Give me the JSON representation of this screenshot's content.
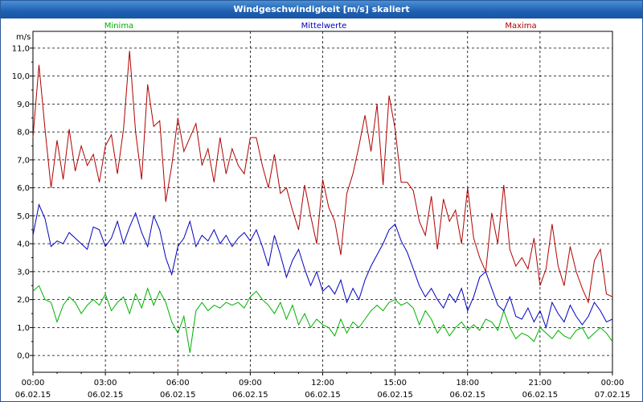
{
  "window": {
    "title": "Windgeschwindigkeit [m/s] skaliert"
  },
  "chart_data": {
    "type": "line",
    "title": "Windgeschwindigkeit [m/s] skaliert",
    "ylabel": "m/s",
    "ylim": [
      -0.6,
      11.6
    ],
    "yticks": [
      "0,0",
      "1,0",
      "2,0",
      "3,0",
      "4,0",
      "5,0",
      "6,0",
      "7,0",
      "8,0",
      "9,0",
      "10,0",
      "11,0"
    ],
    "ytick_values": [
      0,
      1,
      2,
      3,
      4,
      5,
      6,
      7,
      8,
      9,
      10,
      11
    ],
    "xlim": [
      0,
      24
    ],
    "xticks": [
      {
        "time": "00:00",
        "date": "06.02.15"
      },
      {
        "time": "03:00",
        "date": "06.02.15"
      },
      {
        "time": "06:00",
        "date": "06.02.15"
      },
      {
        "time": "09:00",
        "date": "06.02.15"
      },
      {
        "time": "12:00",
        "date": "06.02.15"
      },
      {
        "time": "15:00",
        "date": "06.02.15"
      },
      {
        "time": "18:00",
        "date": "06.02.15"
      },
      {
        "time": "21:00",
        "date": "06.02.15"
      },
      {
        "time": "00:00",
        "date": "07.02.15"
      }
    ],
    "legend_placement": "top",
    "grid": true,
    "x_hours": [
      0,
      0.25,
      0.5,
      0.75,
      1,
      1.25,
      1.5,
      1.75,
      2,
      2.25,
      2.5,
      2.75,
      3,
      3.25,
      3.5,
      3.75,
      4,
      4.25,
      4.5,
      4.75,
      5,
      5.25,
      5.5,
      5.75,
      6,
      6.25,
      6.5,
      6.75,
      7,
      7.25,
      7.5,
      7.75,
      8,
      8.25,
      8.5,
      8.75,
      9,
      9.25,
      9.5,
      9.75,
      10,
      10.25,
      10.5,
      10.75,
      11,
      11.25,
      11.5,
      11.75,
      12,
      12.25,
      12.5,
      12.75,
      13,
      13.25,
      13.5,
      13.75,
      14,
      14.25,
      14.5,
      14.75,
      15,
      15.25,
      15.5,
      15.75,
      16,
      16.25,
      16.5,
      16.75,
      17,
      17.25,
      17.5,
      17.75,
      18,
      18.25,
      18.5,
      18.75,
      19,
      19.25,
      19.5,
      19.75,
      20,
      20.25,
      20.5,
      20.75,
      21,
      21.25,
      21.5,
      21.75,
      22,
      22.25,
      22.5,
      22.75,
      23,
      23.25,
      23.5,
      23.75,
      24
    ],
    "series": [
      {
        "name": "Minima",
        "color": "#00b000",
        "values": [
          2.3,
          2.5,
          2.0,
          1.9,
          1.2,
          1.8,
          2.1,
          1.9,
          1.5,
          1.8,
          2.0,
          1.8,
          2.2,
          1.6,
          1.9,
          2.1,
          1.5,
          2.2,
          1.7,
          2.4,
          1.8,
          2.3,
          1.9,
          1.2,
          0.8,
          1.4,
          0.1,
          1.6,
          1.9,
          1.6,
          1.8,
          1.7,
          1.9,
          1.8,
          1.9,
          1.7,
          2.1,
          2.3,
          2.0,
          1.8,
          1.5,
          1.9,
          1.3,
          1.8,
          1.1,
          1.5,
          1.0,
          1.3,
          1.1,
          1.0,
          0.7,
          1.3,
          0.8,
          1.2,
          1.0,
          1.3,
          1.6,
          1.8,
          1.6,
          1.9,
          2.0,
          1.8,
          1.9,
          1.7,
          1.1,
          1.6,
          1.3,
          0.8,
          1.1,
          0.7,
          1.0,
          1.2,
          0.9,
          1.1,
          0.9,
          1.3,
          1.2,
          0.9,
          1.6,
          1.0,
          0.6,
          0.8,
          0.7,
          0.5,
          1.0,
          0.8,
          0.6,
          0.9,
          0.7,
          0.6,
          0.9,
          1.0,
          0.6,
          0.8,
          1.0,
          0.8,
          0.5
        ]
      },
      {
        "name": "Mittelwerte",
        "color": "#0000c0",
        "values": [
          4.3,
          5.4,
          4.9,
          3.9,
          4.1,
          4.0,
          4.4,
          4.2,
          4.0,
          3.8,
          4.6,
          4.5,
          3.9,
          4.2,
          4.8,
          4.0,
          4.6,
          5.1,
          4.4,
          3.9,
          5.0,
          4.5,
          3.5,
          2.9,
          3.9,
          4.2,
          4.8,
          3.9,
          4.3,
          4.1,
          4.5,
          4.0,
          4.3,
          3.9,
          4.2,
          4.4,
          4.1,
          4.5,
          3.9,
          3.2,
          4.3,
          3.6,
          2.8,
          3.4,
          3.8,
          3.1,
          2.5,
          3.0,
          2.3,
          2.5,
          2.2,
          2.7,
          1.9,
          2.4,
          2.0,
          2.7,
          3.2,
          3.6,
          4.0,
          4.5,
          4.7,
          4.1,
          3.7,
          3.1,
          2.5,
          2.1,
          2.4,
          2.0,
          1.7,
          2.2,
          1.9,
          2.4,
          1.6,
          2.1,
          2.8,
          3.0,
          2.4,
          1.8,
          1.6,
          2.1,
          1.4,
          1.3,
          1.7,
          1.2,
          1.6,
          1.0,
          1.9,
          1.5,
          1.2,
          1.8,
          1.4,
          1.1,
          1.4,
          1.9,
          1.6,
          1.2,
          1.3
        ]
      },
      {
        "name": "Maxima",
        "color": "#b00000",
        "values": [
          7.8,
          10.4,
          8.1,
          6.0,
          7.7,
          6.3,
          8.1,
          6.6,
          7.5,
          6.8,
          7.2,
          6.2,
          7.5,
          7.9,
          6.5,
          8.1,
          10.9,
          8.0,
          6.3,
          9.7,
          8.2,
          8.4,
          5.5,
          6.8,
          8.5,
          7.3,
          7.8,
          8.3,
          6.8,
          7.4,
          6.2,
          7.8,
          6.5,
          7.4,
          6.8,
          6.5,
          7.8,
          7.8,
          6.8,
          6.0,
          7.2,
          5.8,
          6.0,
          5.2,
          4.5,
          6.1,
          5.0,
          4.0,
          6.3,
          5.3,
          4.8,
          3.6,
          5.8,
          6.5,
          7.5,
          8.6,
          7.3,
          9.0,
          6.1,
          9.3,
          8.1,
          6.2,
          6.2,
          5.9,
          4.8,
          4.3,
          5.7,
          3.8,
          5.6,
          4.8,
          5.2,
          4.0,
          6.0,
          4.2,
          3.5,
          3.0,
          5.1,
          4.0,
          6.1,
          3.8,
          3.2,
          3.5,
          3.1,
          4.2,
          2.5,
          3.1,
          4.7,
          3.2,
          2.5,
          3.9,
          3.0,
          2.4,
          1.9,
          3.4,
          3.8,
          2.2,
          2.1
        ]
      }
    ]
  }
}
